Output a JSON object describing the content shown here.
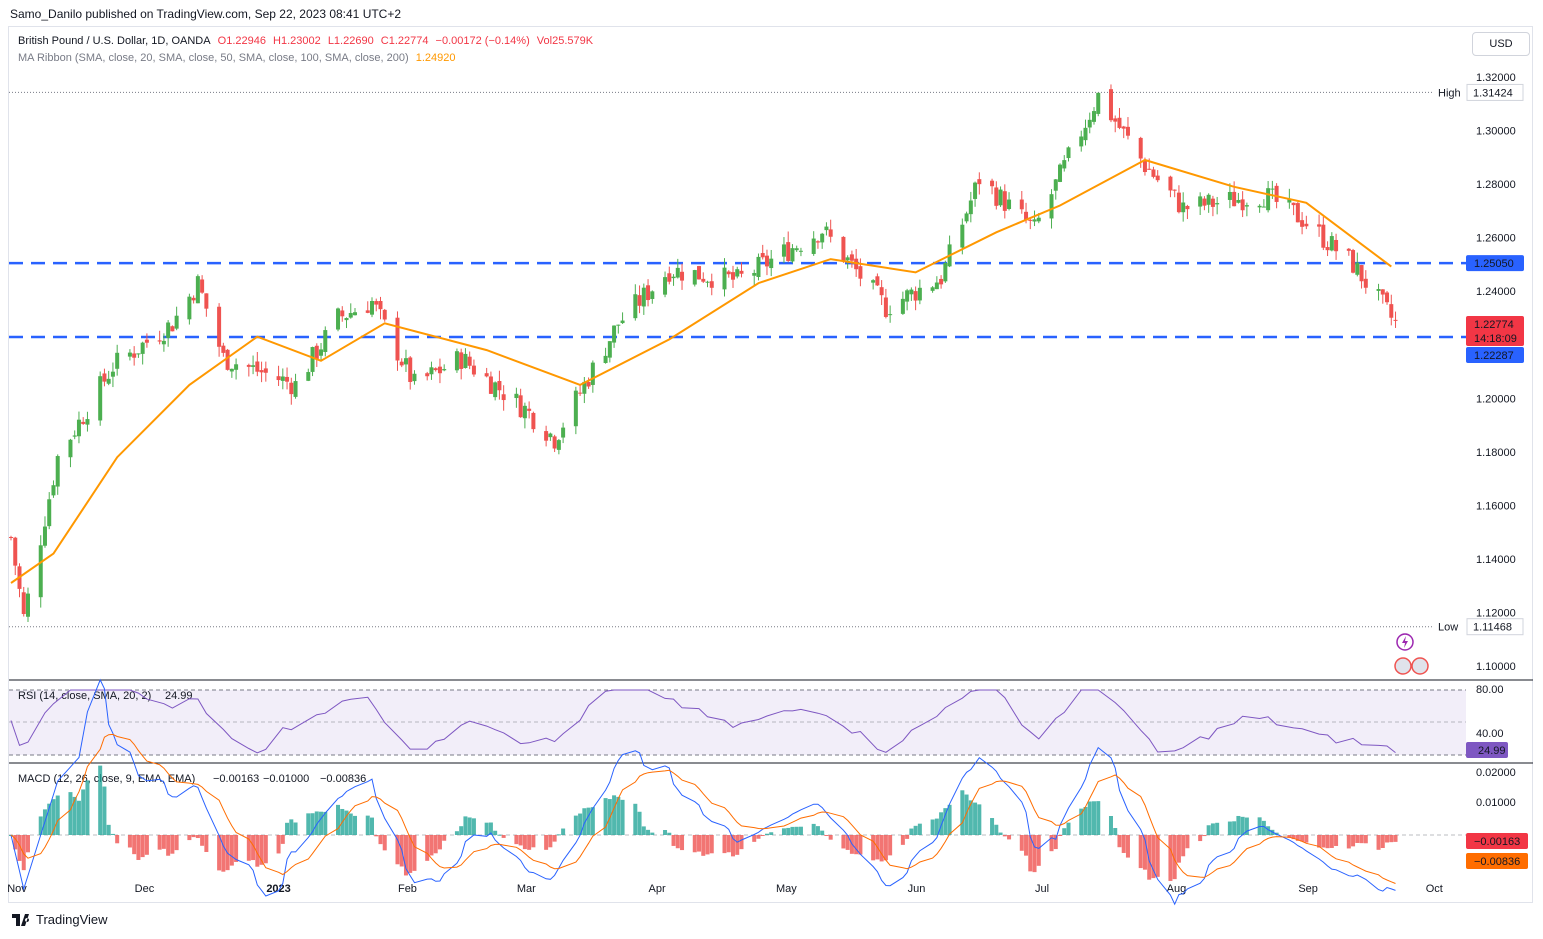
{
  "publisher_line": "Samo_Danilo published on TradingView.com, Sep 22, 2023 08:41 UTC+2",
  "legend": {
    "symbol": "British Pound / U.S. Dollar, 1D, OANDA",
    "open": "O1.22946",
    "high": "H1.23002",
    "low": "L1.22690",
    "close": "C1.22774",
    "change": "−0.00172 (−0.14%)",
    "volume": "Vol25.579K",
    "ma_label": "MA Ribbon (SMA, close, 20, SMA, close, 50, SMA, close, 100, SMA, close, 200)",
    "ma_value": "1.24920"
  },
  "currency_button": "USD",
  "footer_brand": "TradingView",
  "price_axis": {
    "ticks": [
      "1.32000",
      "1.30000",
      "1.28000",
      "1.26000",
      "1.24000",
      "1.20000",
      "1.18000",
      "1.16000",
      "1.14000",
      "1.12000",
      "1.10000"
    ],
    "high_label": "High",
    "high_value": "1.31424",
    "low_label": "Low",
    "low_value": "1.11468",
    "level_upper": "1.25050",
    "level_lower": "1.22287",
    "last_price": "1.22774",
    "countdown": "14:18:09"
  },
  "time_axis": [
    "Nov",
    "Dec",
    "2023",
    "Feb",
    "Mar",
    "Apr",
    "May",
    "Jun",
    "Jul",
    "Aug",
    "Sep",
    "Oct"
  ],
  "rsi": {
    "legend": "RSI (14, close, SMA, 20, 2)",
    "value": "24.99",
    "ticks": [
      "80.00",
      "40.00"
    ]
  },
  "macd": {
    "legend": "MACD (12, 26, close, 9, EMA, EMA)",
    "hist": "−0.00163",
    "macd": "−0.01000",
    "signal": "−0.00836",
    "ticks": [
      "0.02000",
      "0.01000"
    ],
    "hist_label": "−0.00163",
    "signal_label": "−0.00836"
  },
  "colors": {
    "up": "#26a69a",
    "up_candle": "#4caf50",
    "down": "#ef5350",
    "ma": "#ff9800",
    "level": "#2962ff",
    "rsi": "#7e57c2",
    "macd_line": "#2962ff",
    "signal_line": "#ff6d00"
  },
  "chart_data": {
    "type": "candlestick",
    "title": "British Pound / U.S. Dollar, 1D, OANDA",
    "ylim": [
      1.095,
      1.324
    ],
    "x_range": [
      "2022-10-31",
      "2023-10-02"
    ],
    "horizontal_levels": [
      1.2505,
      1.22287
    ],
    "high": 1.31424,
    "low": 1.11468,
    "monthly_path": [
      {
        "date": "2022-10-31",
        "close": 1.148
      },
      {
        "date": "2022-11-03",
        "close": 1.118
      },
      {
        "date": "2022-11-11",
        "close": 1.178
      },
      {
        "date": "2022-11-24",
        "close": 1.212
      },
      {
        "date": "2022-12-08",
        "close": 1.228
      },
      {
        "date": "2022-12-14",
        "close": 1.243
      },
      {
        "date": "2022-12-20",
        "close": 1.215
      },
      {
        "date": "2023-01-06",
        "close": 1.205
      },
      {
        "date": "2023-01-16",
        "close": 1.23
      },
      {
        "date": "2023-01-24",
        "close": 1.236
      },
      {
        "date": "2023-02-03",
        "close": 1.205
      },
      {
        "date": "2023-02-14",
        "close": 1.215
      },
      {
        "date": "2023-03-01",
        "close": 1.196
      },
      {
        "date": "2023-03-08",
        "close": 1.185
      },
      {
        "date": "2023-03-23",
        "close": 1.228
      },
      {
        "date": "2023-04-04",
        "close": 1.248
      },
      {
        "date": "2023-04-20",
        "close": 1.244
      },
      {
        "date": "2023-05-10",
        "close": 1.263
      },
      {
        "date": "2023-05-25",
        "close": 1.234
      },
      {
        "date": "2023-06-07",
        "close": 1.245
      },
      {
        "date": "2023-06-16",
        "close": 1.282
      },
      {
        "date": "2023-06-29",
        "close": 1.263
      },
      {
        "date": "2023-07-14",
        "close": 1.313
      },
      {
        "date": "2023-07-25",
        "close": 1.287
      },
      {
        "date": "2023-08-03",
        "close": 1.271
      },
      {
        "date": "2023-08-22",
        "close": 1.276
      },
      {
        "date": "2023-08-31",
        "close": 1.267
      },
      {
        "date": "2023-09-12",
        "close": 1.25
      },
      {
        "date": "2023-09-22",
        "close": 1.22774
      }
    ],
    "ma20_path": [
      {
        "date": "2022-10-31",
        "value": 1.131
      },
      {
        "date": "2022-11-10",
        "value": 1.142
      },
      {
        "date": "2022-11-25",
        "value": 1.178
      },
      {
        "date": "2022-12-12",
        "value": 1.205
      },
      {
        "date": "2022-12-28",
        "value": 1.223
      },
      {
        "date": "2023-01-12",
        "value": 1.214
      },
      {
        "date": "2023-01-27",
        "value": 1.228
      },
      {
        "date": "2023-02-20",
        "value": 1.218
      },
      {
        "date": "2023-03-14",
        "value": 1.205
      },
      {
        "date": "2023-04-04",
        "value": 1.222
      },
      {
        "date": "2023-04-25",
        "value": 1.243
      },
      {
        "date": "2023-05-12",
        "value": 1.252
      },
      {
        "date": "2023-06-01",
        "value": 1.247
      },
      {
        "date": "2023-06-20",
        "value": 1.262
      },
      {
        "date": "2023-07-05",
        "value": 1.272
      },
      {
        "date": "2023-07-25",
        "value": 1.289
      },
      {
        "date": "2023-08-15",
        "value": 1.279
      },
      {
        "date": "2023-09-01",
        "value": 1.273
      },
      {
        "date": "2023-09-21",
        "value": 1.2492
      }
    ],
    "rsi_last": 24.99,
    "macd_last": {
      "macd": -0.01,
      "signal": -0.00836,
      "hist": -0.00163
    }
  }
}
